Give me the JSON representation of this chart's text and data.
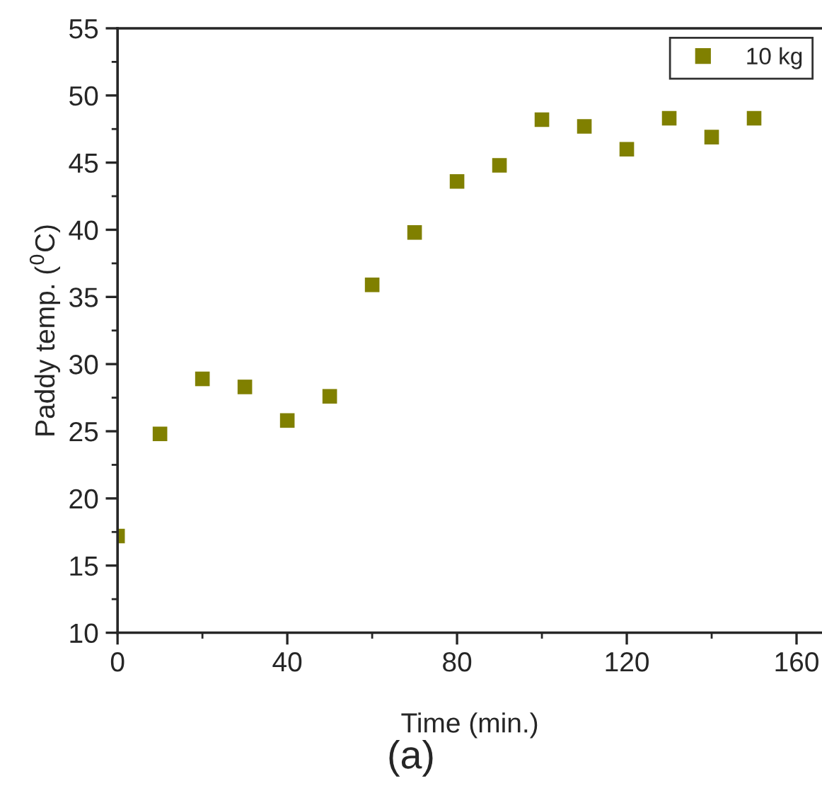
{
  "chart_data": {
    "type": "scatter",
    "xlabel": "Time (min.)",
    "ylabel": "Paddy temp. ($^{0}$C)",
    "annotations": [
      "(a)"
    ],
    "x": [
      0,
      10,
      20,
      30,
      40,
      50,
      60,
      70,
      80,
      90,
      100,
      110,
      120,
      130,
      140,
      150
    ],
    "series": [
      {
        "name": "10 kg",
        "color": "#808000",
        "values": [
          17.2,
          24.8,
          28.9,
          28.3,
          25.8,
          27.6,
          35.9,
          39.8,
          43.6,
          44.8,
          48.2,
          47.7,
          46.0,
          48.3,
          46.9,
          48.3
        ]
      }
    ],
    "marker": "square",
    "legend": "top right",
    "grid": false,
    "xlim": [
      0,
      166
    ],
    "ylim": [
      10,
      55
    ],
    "xticks": [
      0,
      {
        "value": 20,
        "label": null
      },
      40,
      {
        "value": 60,
        "label": null
      },
      80,
      {
        "value": 100,
        "label": null
      },
      120,
      {
        "value": 140,
        "label": null
      },
      160
    ],
    "yticks": [
      10,
      {
        "value": 12.5,
        "label": null
      },
      15,
      {
        "value": 17.5,
        "label": null
      },
      20,
      {
        "value": 22.5,
        "label": null
      },
      25,
      {
        "value": 27.5,
        "label": null
      },
      30,
      {
        "value": 32.5,
        "label": null
      },
      35,
      {
        "value": 37.5,
        "label": null
      },
      40,
      {
        "value": 42.5,
        "label": null
      },
      45,
      {
        "value": 47.5,
        "label": null
      },
      50,
      {
        "value": 52.5,
        "label": null
      },
      55
    ]
  }
}
